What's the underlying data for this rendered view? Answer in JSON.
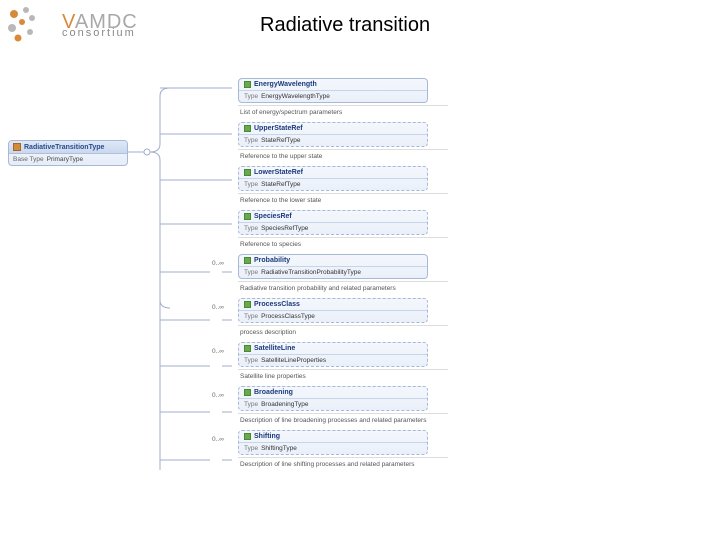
{
  "branding": {
    "main": "VAMDC",
    "sub": "consortium",
    "logo_colors": {
      "orange": "#d88a3a",
      "gray": "#a8a8a8"
    }
  },
  "title": "Radiative transition",
  "root": {
    "name": "RadiativeTransitionType",
    "base_label": "Base Type",
    "base_value": "PrimaryType"
  },
  "children": [
    {
      "name": "EnergyWavelength",
      "type": "EnergyWavelengthType",
      "desc": "List of energy/spectrum parameters",
      "card": "",
      "dashed": false
    },
    {
      "name": "UpperStateRef",
      "type": "StateRefType",
      "desc": "Reference to the upper state",
      "card": "",
      "dashed": true
    },
    {
      "name": "LowerStateRef",
      "type": "StateRefType",
      "desc": "Reference to the lower state",
      "card": "",
      "dashed": true
    },
    {
      "name": "SpeciesRef",
      "type": "SpeciesRefType",
      "desc": "Reference to species",
      "card": "",
      "dashed": true
    },
    {
      "name": "Probability",
      "type": "RadiativeTransitionProbabilityType",
      "desc": "Radiative transition probability and related parameters",
      "card": "0..∞",
      "dashed": false
    },
    {
      "name": "ProcessClass",
      "type": "ProcessClassType",
      "desc": "process description",
      "card": "0..∞",
      "dashed": true
    },
    {
      "name": "SatelliteLine",
      "type": "SatelliteLineProperties",
      "desc": "Satellite line properties",
      "card": "0..∞",
      "dashed": true
    },
    {
      "name": "Broadening",
      "type": "BroadeningType",
      "desc": "Description of line broadening processes and related parameters",
      "card": "0..∞",
      "dashed": true
    },
    {
      "name": "Shifting",
      "type": "ShiftingType",
      "desc": "Description of line shifting processes and related parameters",
      "card": "0..∞",
      "dashed": true
    }
  ],
  "type_label": "Type",
  "expand_glyph": "+",
  "colors": {
    "node_border": "#a8b8d8",
    "line": "#9aa8c4",
    "text_title": "#000000"
  }
}
